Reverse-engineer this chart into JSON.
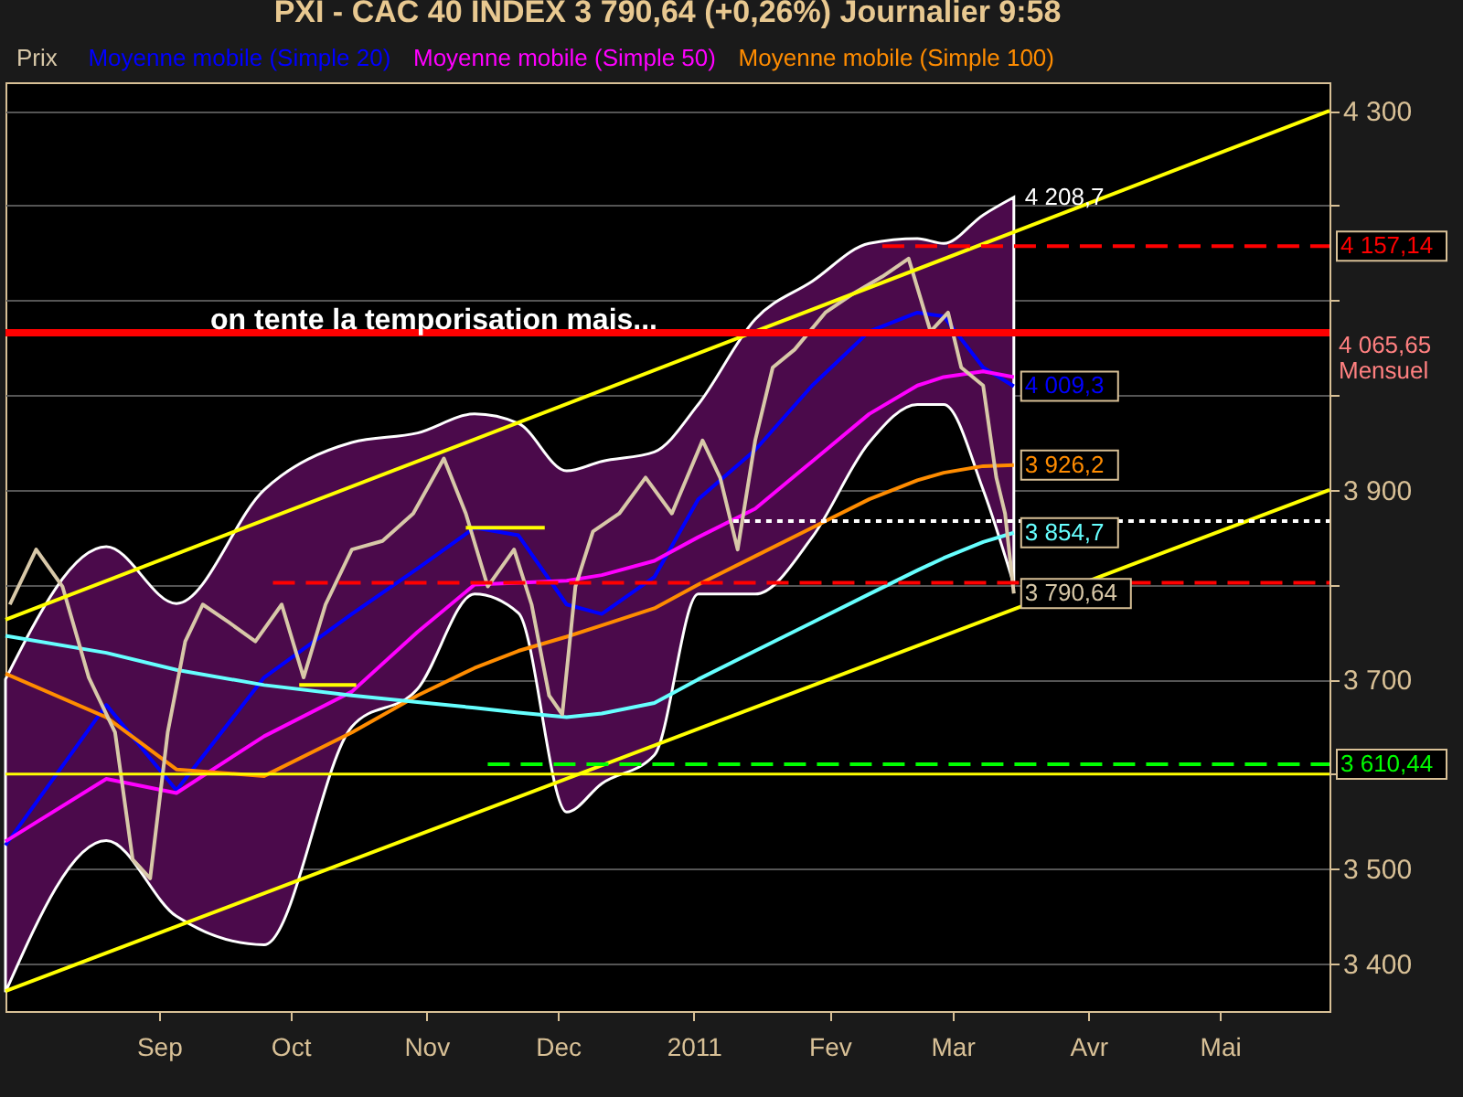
{
  "chart_data": {
    "type": "line",
    "title": "PXI - CAC 40 INDEX    3 790,64 (+0,26%)    Journalier  9:58",
    "xlim": [
      "2010-07-28",
      "2011-05-26"
    ],
    "xticks": [
      {
        "value": "2010-09-01",
        "label": "Sep"
      },
      {
        "value": "2010-10-01",
        "label": "Oct"
      },
      {
        "value": "2010-11-01",
        "label": "Nov"
      },
      {
        "value": "2010-12-01",
        "label": "Dec"
      },
      {
        "value": "2011-01-01",
        "label": "2011"
      },
      {
        "value": "2011-02-01",
        "label": "Fev"
      },
      {
        "value": "2011-03-01",
        "label": "Mar"
      },
      {
        "value": "2011-04-01",
        "label": "Avr"
      },
      {
        "value": "2011-05-01",
        "label": "Mai"
      }
    ],
    "ylim": [
      3350,
      4330
    ],
    "yticks": [
      {
        "value": 3400,
        "label": "3 400"
      },
      {
        "value": 3500,
        "label": "3 500"
      },
      {
        "value": 3600,
        "label": null
      },
      {
        "value": 3700,
        "label": "3 700"
      },
      {
        "value": 3800,
        "label": null
      },
      {
        "value": 3900,
        "label": "3 900"
      },
      {
        "value": 4000,
        "label": null
      },
      {
        "value": 4100,
        "label": null
      },
      {
        "value": 4200,
        "label": null
      },
      {
        "value": 4300,
        "label": "4 300"
      }
    ],
    "grid": "y",
    "legend": "top",
    "series": [
      {
        "name": "Moyenne mobile (Simple 20)",
        "color": "#0000ff",
        "x": [
          "2010-07-28",
          "2010-08-20",
          "2010-09-05",
          "2010-09-25",
          "2010-10-15",
          "2010-10-30",
          "2010-11-12",
          "2010-11-22",
          "2010-12-03",
          "2010-12-11",
          "2010-12-23",
          "2011-01-02",
          "2011-01-15",
          "2011-01-28",
          "2011-02-10",
          "2011-02-21",
          "2011-02-27",
          "2011-03-08",
          "2011-03-15"
        ],
        "values": [
          3525,
          3673,
          3583,
          3702,
          3769,
          3817,
          3860,
          3852,
          3779,
          3769,
          3808,
          3890,
          3942,
          4010,
          4067,
          4087,
          4083,
          4029,
          4009.3
        ],
        "value_labels": [
          null,
          null,
          null,
          null,
          null,
          null,
          null,
          null,
          null,
          null,
          null,
          null,
          null,
          null,
          null,
          null,
          null,
          null,
          "4 009,3"
        ],
        "lower": [
          3370,
          3530,
          3450,
          3420,
          3650,
          3690,
          3790,
          3770,
          3560,
          3590,
          3620,
          3790,
          3790,
          3850,
          3950,
          3990,
          3990,
          3900,
          3800
        ],
        "upper": [
          3700,
          3840,
          3780,
          3900,
          3950,
          3960,
          3980,
          3970,
          3920,
          3930,
          3940,
          3990,
          4080,
          4120,
          4160,
          4165,
          4160,
          4190,
          4208.7
        ]
      },
      {
        "name": "Moyenne mobile (Simple 50)",
        "color": "#ff00ff",
        "x": [
          "2010-07-28",
          "2010-08-20",
          "2010-09-05",
          "2010-09-25",
          "2010-10-15",
          "2010-10-30",
          "2010-11-12",
          "2010-11-22",
          "2010-12-03",
          "2010-12-11",
          "2010-12-23",
          "2011-01-02",
          "2011-01-15",
          "2011-01-28",
          "2011-02-10",
          "2011-02-21",
          "2011-02-27",
          "2011-03-08",
          "2011-03-15"
        ],
        "values": [
          3529,
          3595,
          3580,
          3640,
          3687,
          3750,
          3800,
          3802,
          3804,
          3810,
          3825,
          3850,
          3880,
          3930,
          3980,
          4010,
          4019,
          4025,
          4019
        ]
      },
      {
        "name": "Moyenne mobile (Simple 100)",
        "color": "#ff8c00",
        "x": [
          "2010-07-28",
          "2010-08-20",
          "2010-09-05",
          "2010-09-25",
          "2010-10-15",
          "2010-10-30",
          "2010-11-12",
          "2010-11-22",
          "2010-12-03",
          "2010-12-11",
          "2010-12-23",
          "2011-01-02",
          "2011-01-15",
          "2011-01-28",
          "2011-02-10",
          "2011-02-21",
          "2011-02-27",
          "2011-03-08",
          "2011-03-15"
        ],
        "values": [
          3706,
          3660,
          3605,
          3598,
          3644,
          3683,
          3712,
          3730,
          3745,
          3757,
          3775,
          3800,
          3830,
          3860,
          3890,
          3910,
          3918,
          3925,
          3926.2
        ],
        "value_labels": [
          null,
          null,
          null,
          null,
          null,
          null,
          null,
          null,
          null,
          null,
          null,
          null,
          null,
          null,
          null,
          null,
          null,
          null,
          "3 926,2"
        ]
      },
      {
        "color": "#66ffff",
        "x": [
          "2010-07-28",
          "2010-08-20",
          "2010-09-05",
          "2010-09-25",
          "2010-10-15",
          "2010-10-30",
          "2010-11-12",
          "2010-11-22",
          "2010-12-03",
          "2010-12-11",
          "2010-12-23",
          "2011-01-02",
          "2011-01-15",
          "2011-01-28",
          "2011-02-10",
          "2011-02-21",
          "2011-02-27",
          "2011-03-08",
          "2011-03-15"
        ],
        "values": [
          3746,
          3728,
          3710,
          3694,
          3683,
          3676,
          3670,
          3665,
          3660,
          3664,
          3675,
          3700,
          3730,
          3760,
          3790,
          3815,
          3828,
          3845,
          3854.7
        ],
        "value_labels": [
          null,
          null,
          null,
          null,
          null,
          null,
          null,
          null,
          null,
          null,
          null,
          null,
          null,
          null,
          null,
          null,
          null,
          null,
          "3 854,7"
        ]
      },
      {
        "name": "Prix",
        "color": "#d8c8a8",
        "x": [
          "2010-07-29",
          "2010-08-04",
          "2010-08-10",
          "2010-08-16",
          "2010-08-22",
          "2010-08-26",
          "2010-08-30",
          "2010-09-03",
          "2010-09-07",
          "2010-09-11",
          "2010-09-17",
          "2010-09-23",
          "2010-09-29",
          "2010-10-04",
          "2010-10-09",
          "2010-10-15",
          "2010-10-22",
          "2010-10-29",
          "2010-11-05",
          "2010-11-10",
          "2010-11-15",
          "2010-11-21",
          "2010-11-25",
          "2010-11-29",
          "2010-12-02",
          "2010-12-05",
          "2010-12-09",
          "2010-12-15",
          "2010-12-21",
          "2010-12-27",
          "2011-01-03",
          "2011-01-07",
          "2011-01-11",
          "2011-01-15",
          "2011-01-19",
          "2011-01-24",
          "2011-01-31",
          "2011-02-06",
          "2011-02-13",
          "2011-02-19",
          "2011-02-24",
          "2011-02-28",
          "2011-03-03",
          "2011-03-08",
          "2011-03-11",
          "2011-03-13",
          "2011-03-15"
        ],
        "values": [
          3779,
          3837,
          3798,
          3702,
          3644,
          3510,
          3490,
          3644,
          3740,
          3779,
          3760,
          3740,
          3779,
          3702,
          3779,
          3837,
          3846,
          3875,
          3933,
          3875,
          3798,
          3837,
          3779,
          3683,
          3663,
          3798,
          3856,
          3875,
          3913,
          3875,
          3952,
          3913,
          3837,
          3952,
          4029,
          4048,
          4087,
          4106,
          4125,
          4144,
          4067,
          4087,
          4029,
          4010,
          3913,
          3875,
          3790.64
        ],
        "value_labels": [
          null,
          null,
          null,
          null,
          null,
          null,
          null,
          null,
          null,
          null,
          null,
          null,
          null,
          null,
          null,
          null,
          null,
          null,
          null,
          null,
          null,
          null,
          null,
          null,
          null,
          null,
          null,
          null,
          null,
          null,
          null,
          null,
          null,
          null,
          null,
          null,
          null,
          null,
          null,
          null,
          null,
          null,
          null,
          null,
          null,
          null,
          "3 790,64"
        ]
      },
      {
        "color": "#ffff00",
        "x": [
          "2010-07-28",
          "2011-05-26"
        ],
        "values": [
          3763,
          4300
        ]
      },
      {
        "color": "#ffff00",
        "x": [
          "2010-07-28",
          "2011-05-26"
        ],
        "values": [
          3371,
          3900
        ]
      },
      {
        "color": "#ffff00",
        "x": [
          "2010-11-10",
          "2010-11-28"
        ],
        "values": [
          3860,
          3860
        ]
      },
      {
        "color": "#ffff00",
        "x": [
          "2010-10-03",
          "2010-10-16"
        ],
        "values": [
          3694,
          3694
        ]
      },
      {
        "color": "#ff0000",
        "line_style": "dashed",
        "x": [
          "2010-09-27",
          "2011-05-26"
        ],
        "values": [
          3802,
          3802
        ]
      },
      {
        "color": "#ff0000",
        "line_style": "dashed",
        "x": [
          "2011-02-13",
          "2011-05-26"
        ],
        "values": [
          4157.14,
          4157.14
        ],
        "value_labels": [
          null,
          "4 157,14"
        ]
      },
      {
        "color": "#00ff00",
        "line_style": "dashed",
        "x": [
          "2010-11-15",
          "2011-05-26"
        ],
        "values": [
          3610.44,
          3610.44
        ],
        "value_labels": [
          null,
          "3 610,44"
        ]
      },
      {
        "color": "#ffffff",
        "line_style": "dotted",
        "x": [
          "2011-01-10",
          "2011-05-26"
        ],
        "values": [
          3867,
          3867
        ]
      }
    ],
    "ref_lines": [
      {
        "axis": "y",
        "value": 4065.65,
        "label": "4 065,65\nMensuel",
        "color": "#ff0000"
      },
      {
        "axis": "y",
        "value": 3600,
        "color": "#ffff00"
      }
    ],
    "annotations": [
      "on tente la temporisation mais...",
      {
        "text": "4 208,7",
        "x": "2011-03-15",
        "y": 4208.7
      }
    ]
  }
}
